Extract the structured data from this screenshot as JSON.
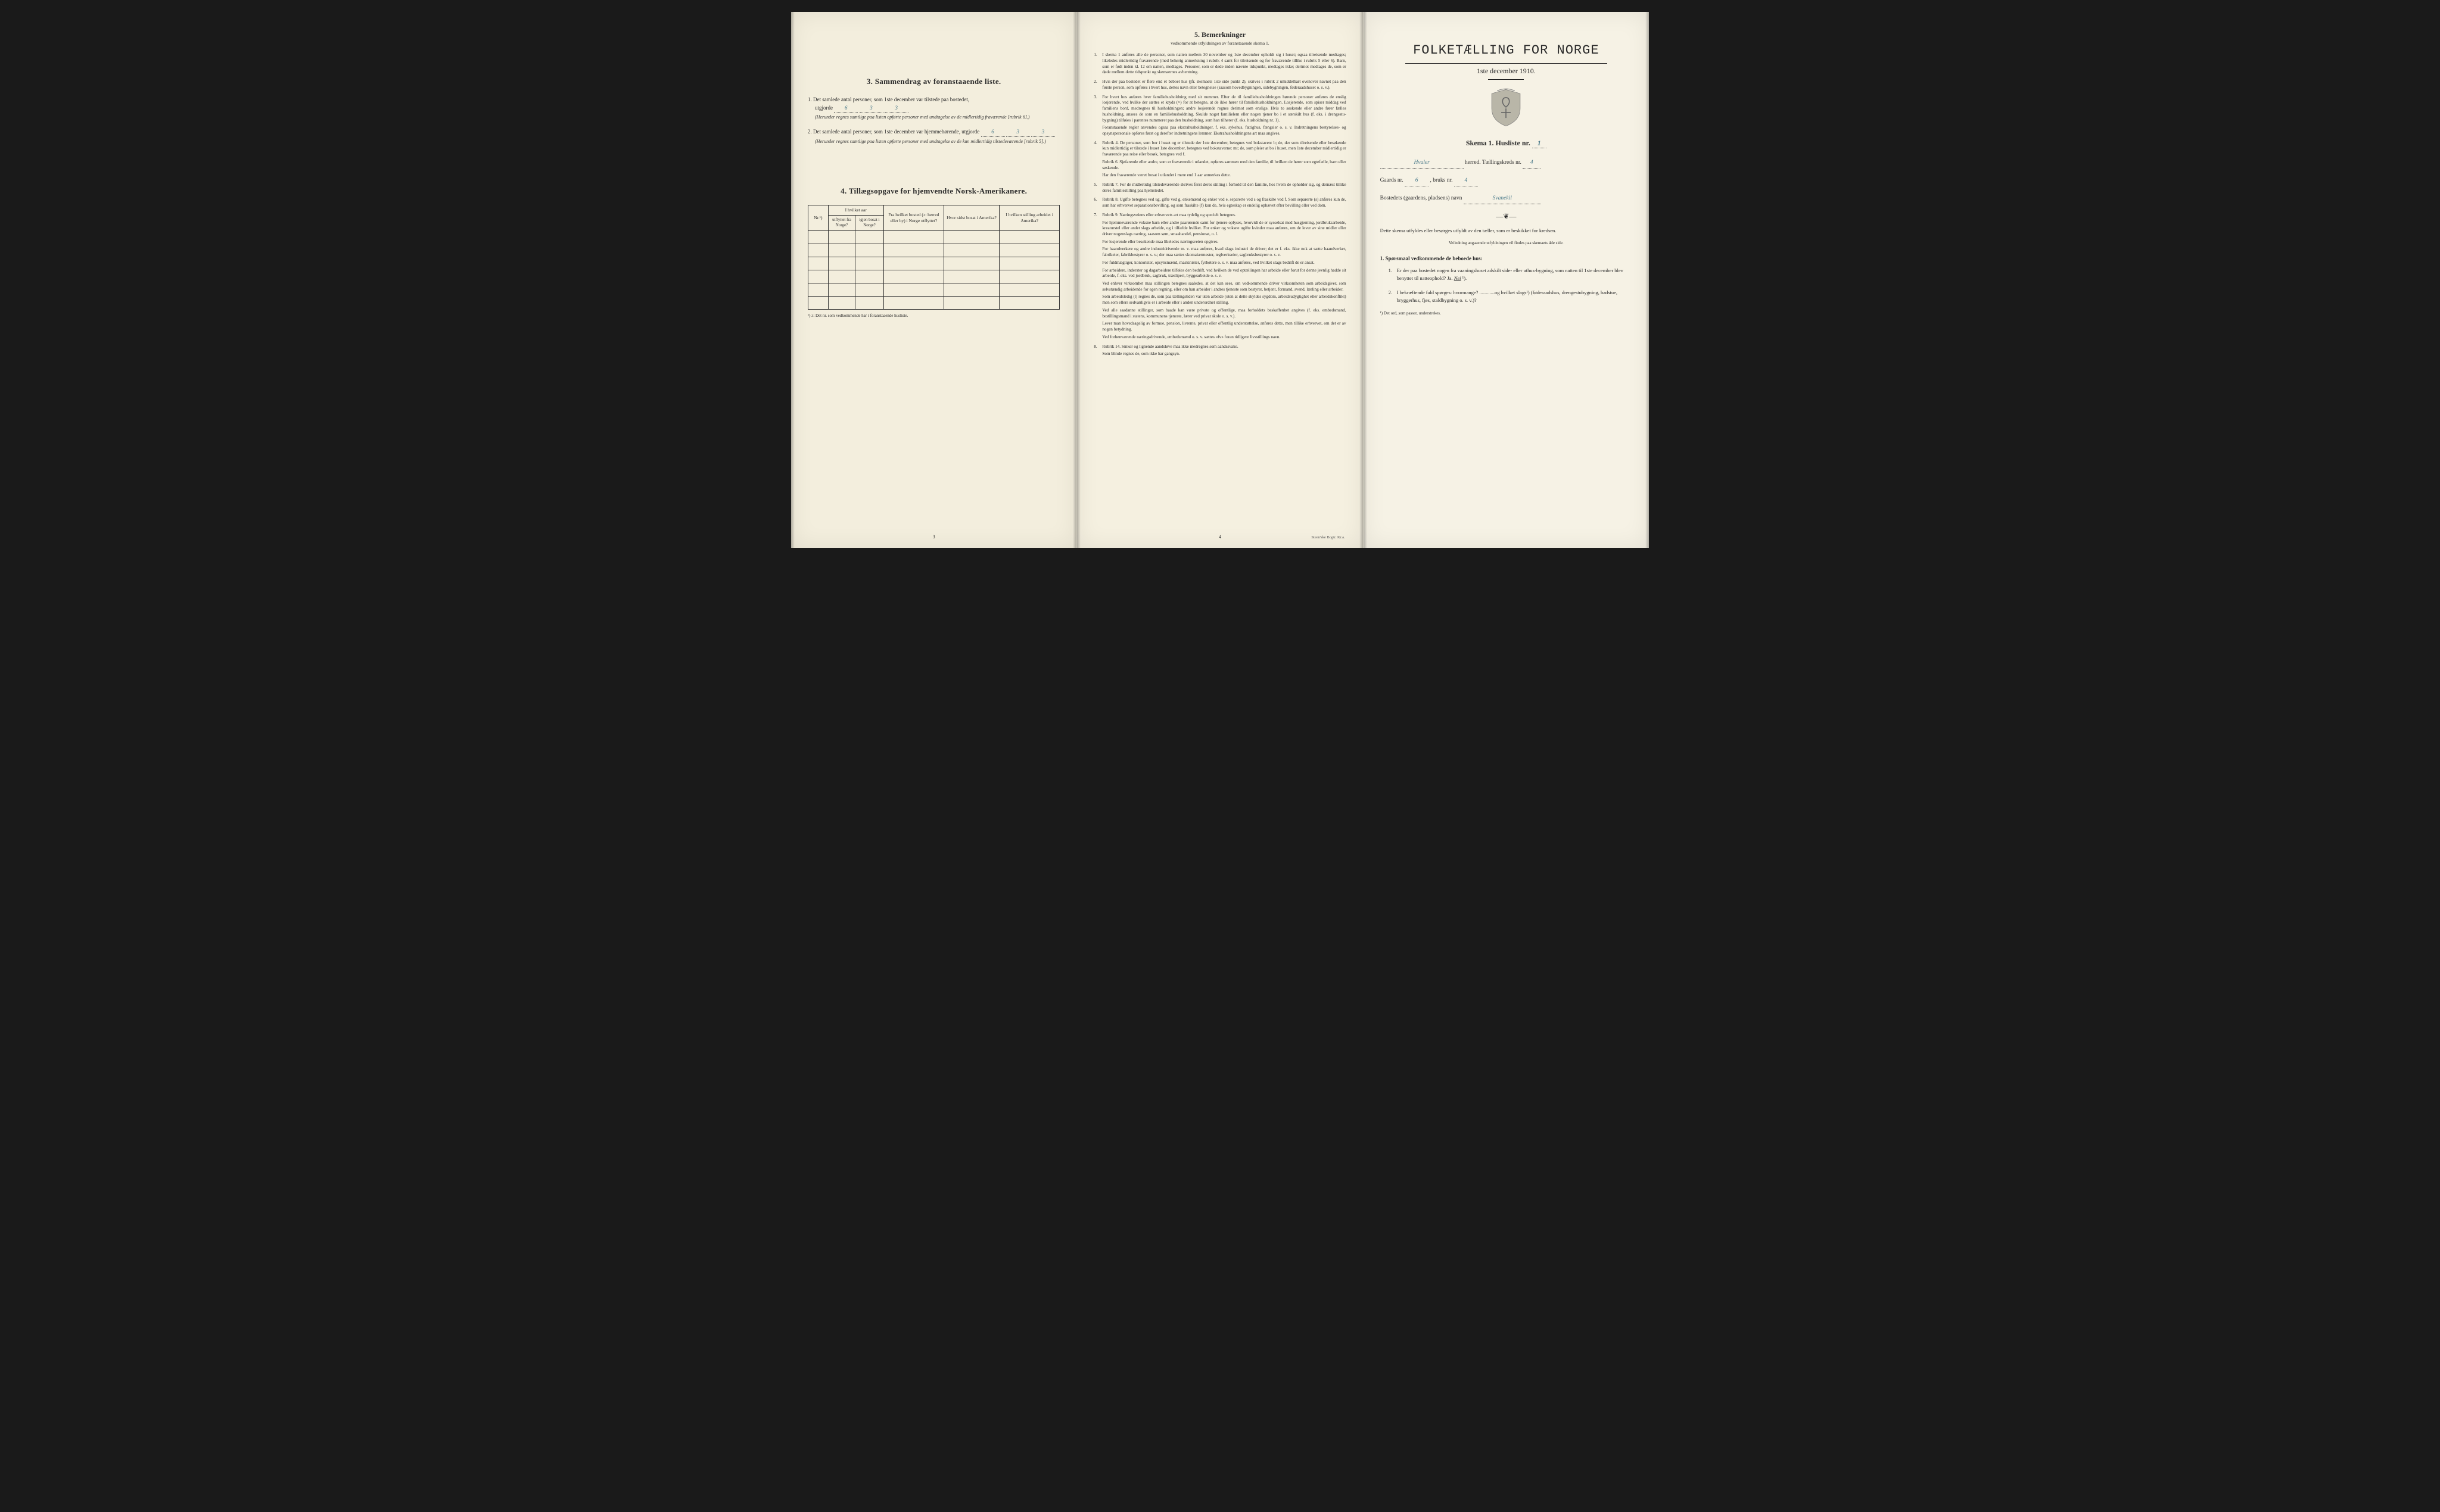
{
  "colors": {
    "paper": "#f5f0e1",
    "ink": "#2a2a2a",
    "handwriting": "#4a7a8a",
    "background": "#1a1a1a"
  },
  "leftPage": {
    "section3_title": "3.   Sammendrag av foranstaaende liste.",
    "item1_text": "Det samlede antal personer, som 1ste december var tilstede paa bostedet,",
    "item1_prefix": "utgjorde",
    "item1_values": [
      "6",
      "3",
      "3"
    ],
    "item1_paren": "(Herunder regnes samtlige paa listen opførte personer med undtagelse av de midlertidig fraværende [rubrik 6].)",
    "item2_text": "Det samlede antal personer, som 1ste december var hjemmehørende, utgjorde",
    "item2_values": [
      "6",
      "3",
      "3"
    ],
    "item2_paren": "(Herunder regnes samtlige paa listen opførte personer med undtagelse av de kun midlertidig tilstedeværende [rubrik 5].)",
    "section4_title": "4.  Tillægsopgave for hjemvendte Norsk-Amerikanere.",
    "table": {
      "col_nr": "Nr.¹)",
      "col_year_group": "I hvilket aar",
      "col_year_out": "utflyttet fra Norge?",
      "col_year_back": "igjen bosat i Norge?",
      "col_from": "Fra hvilket bosted (ɔ: herred eller by) i Norge utflyttet?",
      "col_last": "Hvor sidst bosat i Amerika?",
      "col_occ": "I hvilken stilling arbeidet i Amerika?",
      "blank_rows": 6
    },
    "footnote": "¹) ɔ: Det nr. som vedkommende har i foranstaaende husliste.",
    "page_num": "3"
  },
  "middlePage": {
    "title": "5.   Bemerkninger",
    "subtitle": "vedkommende utfyldningen av foranstaaende skema 1.",
    "remarks": [
      "I skema 1 anføres alle de personer, som natten mellem 30 november og 1ste december opholdt sig i huset; ogsaa tilreisende medtages; likeledes midlertidig fraværende (med behørig anmerkning i rubrik 4 samt for tilreisende og for fraværende tillike i rubrik 5 eller 6). Barn, som er født inden kl. 12 om natten, medtages. Personer, som er døde inden nævnte tidspunkt, medtages ikke; derimot medtages de, som er døde mellem dette tidspunkt og skemaernes avhentning.",
      "Hvis der paa bostedet er flere end ét beboet hus (jfr. skemaets 1ste side punkt 2), skrives i rubrik 2 umiddelbart ovenover navnet paa den første person, som opføres i hvert hus, dettes navn eller betegnelse (saasom hovedbygningen, sidebygningen, føderaadshuset o. s. v.).",
      "For hvert hus anføres hver familiehusholdning med sit nummer. Efter de til familiehusholdningen hørende personer anføres de enslig losjerende, ved hvilke der sættes et kryds (×) for at betegne, at de ikke hører til familiehusholdningen. Losjerende, som spiser middag ved familiens bord, medregnes til husholdningen; andre losjerende regnes derimot som enslige. Hvis to søskende eller andre fører fælles husholdning, ansees de som en familiehusholdning. Skulde noget familielem eller nogen tjener bo i et særskilt hus (f. eks. i drengestu-bygning) tilføies i parentes nummeret paa den husholdning, som han tilhører (f. eks. husholdning nr. 1).\n     Foranstaaende regler anvendes ogsaa paa ekstrahusholdninger, f. eks. sykehus, fattighus, fængsler o. s. v. Indretningens bestyrelses- og opsynspersonale opføres først og derefter indretningens lemmer. Ekstrahusholdningens art maa angives.",
      "Rubrik 4. De personer, som bor i huset og er tilstede der 1ste december, betegnes ved bokstaven: b; de, der som tilreisende eller besøkende kun midlertidig er tilstede i huset 1ste december, betegnes ved bokstaverne: mt; de, som pleier at bo i huset, men 1ste december midlertidig er fraværende paa reise eller besøk, betegnes ved f.\n     Rubrik 6. Sjøfarende eller andre, som er fraværende i utlandet, opføres sammen med den familie, til hvilken de hører som egtefælle, barn eller søskende.\n     Har den fraværende været bosat i utlandet i mere end 1 aar anmerkes dette.",
      "Rubrik 7. For de midlertidig tilstedeværende skrives først deres stilling i forhold til den familie, hos hvem de opholder sig, og dernæst tillike deres familiestilling paa hjemstedet.",
      "Rubrik 8. Ugifte betegnes ved ug, gifte ved g, enkemænd og enker ved e, separerte ved s og fraskilte ved f. Som separerte (s) anføres kun de, som har erhvervet separationsbevilling, og som fraskilte (f) kun de, hvis egteskap er endelig ophævet efter bevilling eller ved dom.",
      "Rubrik 9. Næringsveiens eller erhvervets art maa tydelig og specielt betegnes.\n     For hjemmeværende voksne barn eller andre paarørende samt for tjenere oplyses, hvorvidt de er sysselsat med husgjerning, jordbruksarbeide, kreaturstel eller andet slags arbeide, og i tilfælde hvilket. For enker og voksne ugifte kvinder maa anføres, om de lever av sine midler eller driver nogenslags næring, saasom søm, smaahandel, pensionat, o. l.\n     For losjerende eller besøkende maa likeledes næringsveien opgives.\n     For haandverkere og andre industridrivende m. v. maa anføres, hvad slags industri de driver; det er f. eks. ikke nok at sætte haandverker, fabrikeier, fabrikbestyrer o. s. v.; der maa sættes skomakermester, teglverkseier, sagbruksbestyrer o. s. v.\n     For fuldmægtiger, kontorister, opsynsmænd, maskinister, fyrbøtere o. s. v. maa anføres, ved hvilket slags bedrift de er ansat.\n     For arbeidere, inderster og dagarbeidere tilføies den bedrift, ved hvilken de ved optællingen har arbeide eller forut for denne jevnlig hadde sit arbeide, f. eks. ved jordbruk, sagbruk, træsliperi, byggearbeide o. s. v.\n     Ved enhver virksomhet maa stillingen betegnes saaledes, at det kan sees, om vedkommende driver virksomheten som arbeidsgiver, som selvstændig arbeidende for egen regning, eller om han arbeider i andres tjeneste som bestyrer, betjent, formand, svend, lærling eller arbeider.\n     Som arbeidsledig (l) regnes de, som paa tællingstiden var uten arbeide (uten at dette skyldes sygdom, arbeidsudygtighet eller arbeidskonflikt) men som ellers sedvanligvis er i arbeide eller i anden underordnet stilling.\n     Ved alle saadanne stillinger, som baade kan være private og offentlige, maa forholdets beskaffenhet angives (f. eks. embedsmand, bestillingsmand i statens, kommunens tjeneste, lærer ved privat skole o. s. v.).\n     Lever man hovedsagelig av formue, pension, livrente, privat eller offentlig understøttelse, anføres dette, men tillike erhvervet, om det er av nogen betydning.\n     Ved forhenværende næringsdrivende, embedsmænd o. s. v. sættes «fv» foran tidligere livsstillings navn.",
      "Rubrik 14. Sinker og lignende aandsløve maa ikke medregnes som aandssvake.\n     Som blinde regnes de, som ikke har gangsyn."
    ],
    "page_num": "4",
    "printer": "Steen'ske Bogtr. Kr.a."
  },
  "rightPage": {
    "main_title": "FOLKETÆLLING FOR NORGE",
    "date": "1ste december 1910.",
    "skema_label": "Skema 1.   Husliste nr.",
    "husliste_nr": "1",
    "herred_value": "Hvaler",
    "herred_label": "herred.   Tællingskreds nr.",
    "kreds_nr": "4",
    "gaards_label": "Gaards nr.",
    "gaards_nr": "6",
    "bruks_label": ", bruks nr.",
    "bruks_nr": "4",
    "bosted_label": "Bostedets (gaardens, pladsens) navn",
    "bosted_value": "Svanekil",
    "instruct": "Dette skema utfyldes eller besørges utfyldt av den tæller, som er beskikket for kredsen.",
    "instruct_sub": "Veiledning angaaende utfyldningen vil findes paa skemaets 4de side.",
    "q_heading": "1. Spørsmaal vedkommende de beboede hus:",
    "q1": "Er der paa bostedet nogen fra vaaningshuset adskilt side- eller uthus-bygning, som natten til 1ste december blev benyttet til natteophold?   Ja.   Nei ¹).",
    "q2": "I bekræftende fald spørges: hvormange? ............og hvilket slags¹) (føderaadshus, drengestubygning, badstue, bryggerhus, fjøs, staldbygning o. s. v.)?",
    "footnote": "¹) Det ord, som passer, understrekes."
  }
}
